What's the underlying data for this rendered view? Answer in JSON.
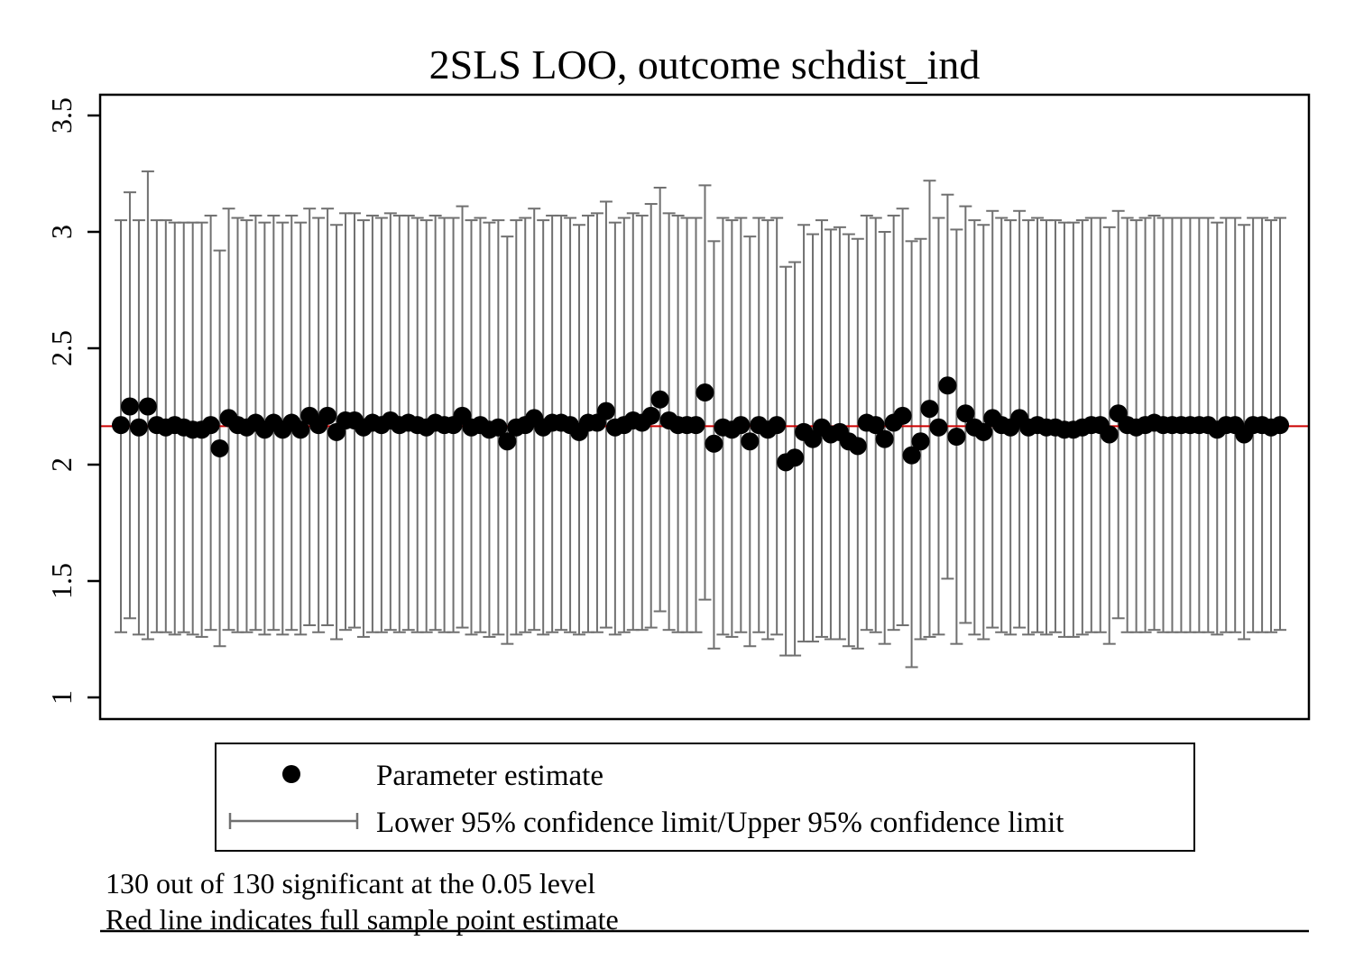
{
  "chart_data": {
    "type": "scatter",
    "title": "2SLS LOO, outcome schdist_ind",
    "ylim": [
      1,
      3.5
    ],
    "yticks": [
      "1",
      "1.5",
      "2",
      "2.5",
      "3",
      "3.5"
    ],
    "reference_line": {
      "value": 2.165,
      "color": "#cc0000"
    },
    "legend": [
      {
        "label": "Parameter estimate",
        "marker": "dot"
      },
      {
        "label": "Lower 95% confidence limit/Upper 95% confidence limit",
        "marker": "range"
      }
    ],
    "notes": [
      "130 out of 130 significant at the 0.05 level",
      "Red line indicates full sample point estimate"
    ],
    "colors": {
      "point": "#000000",
      "errorbar": "#707070",
      "reference": "#cc0000"
    },
    "estimates": [
      2.17,
      2.25,
      2.16,
      2.25,
      2.17,
      2.16,
      2.17,
      2.16,
      2.15,
      2.15,
      2.17,
      2.07,
      2.2,
      2.17,
      2.16,
      2.18,
      2.15,
      2.18,
      2.15,
      2.18,
      2.15,
      2.21,
      2.17,
      2.21,
      2.14,
      2.19,
      2.19,
      2.16,
      2.18,
      2.17,
      2.19,
      2.17,
      2.18,
      2.17,
      2.16,
      2.18,
      2.17,
      2.17,
      2.21,
      2.16,
      2.17,
      2.15,
      2.16,
      2.1,
      2.16,
      2.17,
      2.2,
      2.16,
      2.18,
      2.18,
      2.17,
      2.14,
      2.18,
      2.18,
      2.23,
      2.16,
      2.17,
      2.19,
      2.18,
      2.21,
      2.28,
      2.19,
      2.17,
      2.17,
      2.17,
      2.31,
      2.09,
      2.16,
      2.15,
      2.17,
      2.1,
      2.17,
      2.15,
      2.17,
      2.01,
      2.03,
      2.14,
      2.11,
      2.16,
      2.13,
      2.14,
      2.1,
      2.08,
      2.18,
      2.17,
      2.11,
      2.18,
      2.21,
      2.04,
      2.1,
      2.24,
      2.16,
      2.34,
      2.12,
      2.22,
      2.16,
      2.14,
      2.2,
      2.17,
      2.16,
      2.2,
      2.16,
      2.17,
      2.16,
      2.16,
      2.15,
      2.15,
      2.16,
      2.17,
      2.17,
      2.13,
      2.22,
      2.17,
      2.16,
      2.17,
      2.18,
      2.17,
      2.17,
      2.17,
      2.17,
      2.17,
      2.17,
      2.15,
      2.17,
      2.17,
      2.13,
      2.17,
      2.17,
      2.16,
      2.17
    ],
    "lower": [
      1.28,
      1.34,
      1.27,
      1.25,
      1.28,
      1.28,
      1.27,
      1.28,
      1.27,
      1.26,
      1.29,
      1.22,
      1.29,
      1.28,
      1.28,
      1.29,
      1.27,
      1.29,
      1.27,
      1.29,
      1.27,
      1.31,
      1.28,
      1.31,
      1.25,
      1.29,
      1.3,
      1.26,
      1.28,
      1.28,
      1.29,
      1.28,
      1.29,
      1.28,
      1.28,
      1.29,
      1.28,
      1.28,
      1.3,
      1.27,
      1.28,
      1.26,
      1.27,
      1.23,
      1.27,
      1.28,
      1.29,
      1.27,
      1.28,
      1.29,
      1.28,
      1.27,
      1.28,
      1.28,
      1.3,
      1.27,
      1.28,
      1.29,
      1.29,
      1.3,
      1.37,
      1.29,
      1.28,
      1.28,
      1.28,
      1.42,
      1.21,
      1.27,
      1.26,
      1.28,
      1.22,
      1.28,
      1.25,
      1.27,
      1.18,
      1.18,
      1.24,
      1.24,
      1.26,
      1.25,
      1.25,
      1.22,
      1.21,
      1.29,
      1.28,
      1.23,
      1.29,
      1.31,
      1.13,
      1.25,
      1.26,
      1.27,
      1.51,
      1.23,
      1.32,
      1.27,
      1.25,
      1.3,
      1.28,
      1.27,
      1.3,
      1.27,
      1.28,
      1.27,
      1.28,
      1.26,
      1.26,
      1.27,
      1.28,
      1.28,
      1.23,
      1.34,
      1.28,
      1.28,
      1.28,
      1.29,
      1.28,
      1.28,
      1.28,
      1.28,
      1.28,
      1.28,
      1.27,
      1.28,
      1.28,
      1.25,
      1.28,
      1.28,
      1.28,
      1.29
    ],
    "upper": [
      3.05,
      3.17,
      3.05,
      3.26,
      3.05,
      3.05,
      3.04,
      3.04,
      3.04,
      3.04,
      3.07,
      2.92,
      3.1,
      3.06,
      3.05,
      3.07,
      3.04,
      3.07,
      3.04,
      3.07,
      3.04,
      3.1,
      3.06,
      3.1,
      3.03,
      3.08,
      3.08,
      3.05,
      3.07,
      3.06,
      3.08,
      3.07,
      3.07,
      3.06,
      3.05,
      3.07,
      3.06,
      3.06,
      3.11,
      3.05,
      3.06,
      3.04,
      3.05,
      2.98,
      3.05,
      3.06,
      3.1,
      3.05,
      3.07,
      3.07,
      3.06,
      3.03,
      3.07,
      3.08,
      3.13,
      3.04,
      3.06,
      3.08,
      3.07,
      3.12,
      3.19,
      3.08,
      3.07,
      3.06,
      3.06,
      3.2,
      2.96,
      3.06,
      3.05,
      3.06,
      2.98,
      3.06,
      3.05,
      3.06,
      2.85,
      2.87,
      3.03,
      2.99,
      3.05,
      3.01,
      3.02,
      2.99,
      2.97,
      3.07,
      3.06,
      3.0,
      3.07,
      3.1,
      2.96,
      2.97,
      3.22,
      3.06,
      3.16,
      3.01,
      3.11,
      3.05,
      3.03,
      3.09,
      3.06,
      3.05,
      3.09,
      3.05,
      3.06,
      3.05,
      3.05,
      3.04,
      3.04,
      3.05,
      3.06,
      3.06,
      3.02,
      3.09,
      3.06,
      3.05,
      3.06,
      3.07,
      3.06,
      3.06,
      3.06,
      3.06,
      3.06,
      3.06,
      3.04,
      3.06,
      3.06,
      3.03,
      3.06,
      3.06,
      3.05,
      3.06
    ]
  }
}
